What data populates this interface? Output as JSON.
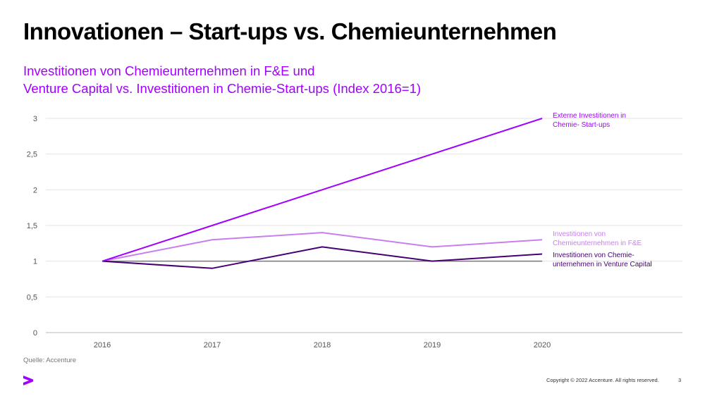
{
  "title": "Innovationen – Start-ups vs. Chemieunternehmen",
  "subtitle_line1": "Investitionen von Chemieunternehmen in F&E und",
  "subtitle_line2": "Venture Capital vs. Investitionen in Chemie-Start-ups (Index 2016=1)",
  "chart_data": {
    "type": "line",
    "x": [
      "2016",
      "2017",
      "2018",
      "2019",
      "2020"
    ],
    "ylim": [
      0,
      3
    ],
    "yticks": [
      "0",
      "0,5",
      "1",
      "1,5",
      "2",
      "2,5",
      "3"
    ],
    "grid": true,
    "legend": "right (direct labels)",
    "series": [
      {
        "name_line1": "Externe Investitionen in",
        "name_line2": "Chemie- Start-ups",
        "values": [
          1,
          1.5,
          2,
          2.5,
          3
        ],
        "color": "#a100ff"
      },
      {
        "name_line1": "Investitionen von",
        "name_line2": "Chemieunternehmen in F&E",
        "values": [
          1,
          1.3,
          1.4,
          1.2,
          1.3
        ],
        "color": "#c97ef0"
      },
      {
        "name_line1": "Investitionen von Chemie-",
        "name_line2": "unternehmen in Venture Capital",
        "values": [
          1,
          0.9,
          1.2,
          1.0,
          1.1
        ],
        "color": "#460073"
      },
      {
        "values": [
          1,
          1,
          1,
          1,
          1
        ],
        "color": "#777777"
      }
    ]
  },
  "source": "Quelle: Accenture",
  "copyright": "Copyright © 2022 Accenture. All rights reserved.",
  "page_number": "3",
  "brand_color": "#a100ff"
}
